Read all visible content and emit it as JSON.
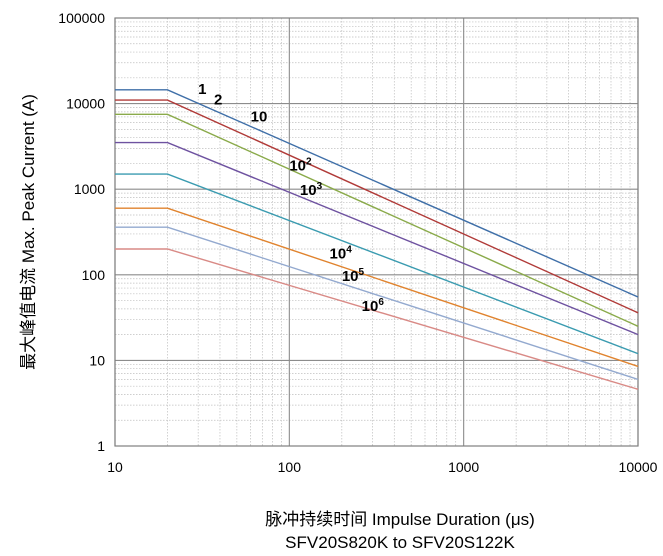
{
  "chart_data": {
    "type": "line",
    "xscale": "log",
    "yscale": "log",
    "xlim": [
      10,
      10000
    ],
    "ylim": [
      1,
      100000
    ],
    "xlabel": "脉冲持续时间 Impulse Duration (μs)",
    "xlabel2": "SFV20S820K to SFV20S122K",
    "ylabel": "最大峰值电流 Max. Peak Current (A)",
    "xticks": [
      "10",
      "100",
      "1000",
      "10000"
    ],
    "yticks": [
      "1",
      "10",
      "100",
      "1000",
      "10000",
      "100000"
    ],
    "grid": true,
    "series": [
      {
        "name": "1",
        "name_exp": "",
        "color": "#3f6fa8",
        "points": [
          [
            10,
            14500
          ],
          [
            20,
            14500
          ],
          [
            10000,
            55
          ]
        ]
      },
      {
        "name": "2",
        "name_exp": "",
        "color": "#b03a38",
        "points": [
          [
            10,
            11000
          ],
          [
            20,
            11000
          ],
          [
            10000,
            36
          ]
        ]
      },
      {
        "name": "10",
        "name_exp": "",
        "color": "#8aaa4a",
        "points": [
          [
            10,
            7500
          ],
          [
            20,
            7500
          ],
          [
            10000,
            25
          ]
        ]
      },
      {
        "name": "10",
        "name_exp": "2",
        "color": "#6e52a0",
        "points": [
          [
            10,
            3500
          ],
          [
            20,
            3500
          ],
          [
            10000,
            20
          ]
        ]
      },
      {
        "name": "10",
        "name_exp": "3",
        "color": "#3a9bb0",
        "points": [
          [
            10,
            1500
          ],
          [
            20,
            1500
          ],
          [
            10000,
            12
          ]
        ]
      },
      {
        "name": "10",
        "name_exp": "4",
        "color": "#e0832e",
        "points": [
          [
            10,
            600
          ],
          [
            20,
            600
          ],
          [
            10000,
            8.5
          ]
        ]
      },
      {
        "name": "10",
        "name_exp": "5",
        "color": "#93a9cf",
        "points": [
          [
            10,
            360
          ],
          [
            20,
            360
          ],
          [
            10000,
            6
          ]
        ]
      },
      {
        "name": "10",
        "name_exp": "6",
        "color": "#d98a86",
        "points": [
          [
            10,
            200
          ],
          [
            20,
            200
          ],
          [
            10000,
            4.6
          ]
        ]
      }
    ],
    "series_label_positions": [
      [
        30,
        13000
      ],
      [
        37,
        9800
      ],
      [
        60,
        6200
      ],
      [
        100,
        1650
      ],
      [
        115,
        860
      ],
      [
        170,
        155
      ],
      [
        200,
        85
      ],
      [
        260,
        38
      ]
    ]
  }
}
